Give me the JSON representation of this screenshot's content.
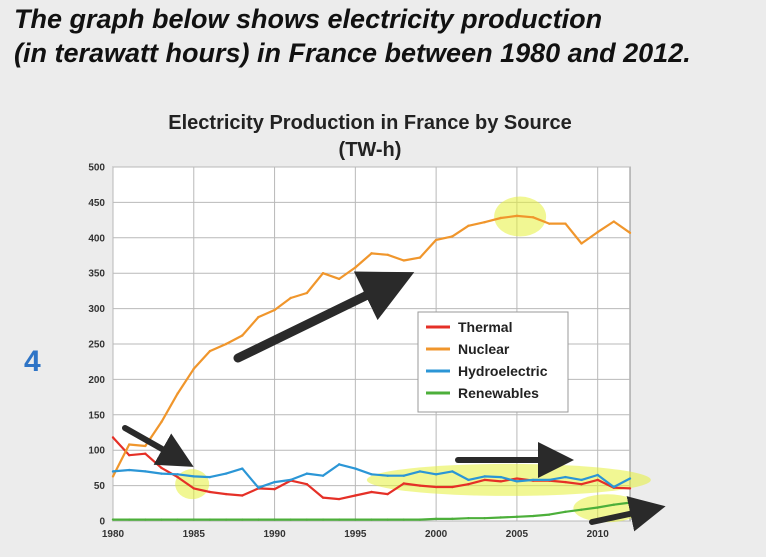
{
  "page": {
    "heading_line1": "The graph below shows electricity production",
    "heading_line2": "(in terawatt hours) in France between 1980 and 2012.",
    "slide_number": "4"
  },
  "chart_data": {
    "type": "line",
    "title_line1": "Electricity Production in France by Source",
    "title_line2": "(TW-h)",
    "xlabel": "",
    "ylabel": "",
    "xlim": [
      1980,
      2012
    ],
    "ylim": [
      0,
      500
    ],
    "x_ticks": [
      1980,
      1985,
      1990,
      1995,
      2000,
      2005,
      2010
    ],
    "y_ticks": [
      0,
      50,
      100,
      150,
      200,
      250,
      300,
      350,
      400,
      450,
      500
    ],
    "grid": true,
    "legend_position": "center-right",
    "x": [
      1980,
      1981,
      1982,
      1983,
      1984,
      1985,
      1986,
      1987,
      1988,
      1989,
      1990,
      1991,
      1992,
      1993,
      1994,
      1995,
      1996,
      1997,
      1998,
      1999,
      2000,
      2001,
      2002,
      2003,
      2004,
      2005,
      2006,
      2007,
      2008,
      2009,
      2010,
      2011,
      2012
    ],
    "series": [
      {
        "name": "Thermal",
        "color": "#e53027",
        "values": [
          118,
          93,
          95,
          75,
          62,
          46,
          41,
          38,
          36,
          46,
          45,
          57,
          52,
          33,
          31,
          36,
          41,
          38,
          53,
          50,
          48,
          48,
          52,
          58,
          56,
          60,
          57,
          57,
          55,
          52,
          58,
          47,
          46
        ]
      },
      {
        "name": "Nuclear",
        "color": "#f0962c",
        "values": [
          63,
          108,
          106,
          140,
          180,
          215,
          240,
          250,
          262,
          288,
          298,
          315,
          322,
          350,
          342,
          358,
          378,
          376,
          368,
          372,
          397,
          402,
          417,
          422,
          428,
          431,
          429,
          420,
          420,
          392,
          408,
          423,
          407
        ]
      },
      {
        "name": "Hydroelectric",
        "color": "#2b96d6",
        "values": [
          70,
          72,
          70,
          67,
          66,
          63,
          62,
          67,
          74,
          47,
          55,
          58,
          67,
          64,
          80,
          74,
          66,
          64,
          64,
          70,
          66,
          70,
          58,
          63,
          62,
          56,
          58,
          58,
          62,
          58,
          65,
          48,
          60
        ]
      },
      {
        "name": "Renewables",
        "color": "#4caf3a",
        "values": [
          2,
          2,
          2,
          2,
          2,
          2,
          2,
          2,
          2,
          2,
          2,
          2,
          2,
          2,
          2,
          2,
          2,
          2,
          2,
          2,
          3,
          3,
          4,
          4,
          5,
          6,
          7,
          9,
          13,
          16,
          19,
          23,
          26
        ]
      }
    ],
    "annotations": {
      "arrows": 4,
      "highlights": 4
    }
  }
}
